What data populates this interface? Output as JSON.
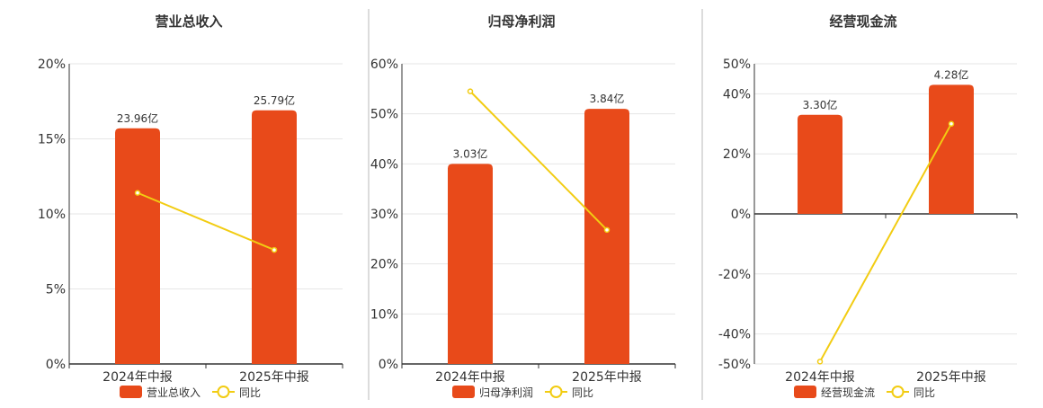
{
  "colors": {
    "bar": "#e84a1a",
    "line": "#f2cc12",
    "grid": "#e6e6e6",
    "axis": "#333333",
    "text": "#333333",
    "divider": "#b8b8b8"
  },
  "chart_data": [
    {
      "type": "bar",
      "title": "营业总收入",
      "categories": [
        "2024年中报",
        "2025年中报"
      ],
      "series": [
        {
          "name": "营业总收入",
          "type": "bar",
          "labels": [
            "23.96亿",
            "25.79亿"
          ],
          "values": [
            15.7,
            16.9
          ]
        },
        {
          "name": "同比",
          "type": "line",
          "values": [
            11.4,
            7.6
          ]
        }
      ],
      "yaxis": {
        "min": 0,
        "max": 20,
        "ticks": [
          "0%",
          "5%",
          "10%",
          "15%",
          "20%"
        ],
        "tick_values": [
          0,
          5,
          10,
          15,
          20
        ]
      },
      "legend": "bottom",
      "grid": true
    },
    {
      "type": "bar",
      "title": "归母净利润",
      "categories": [
        "2024年中报",
        "2025年中报"
      ],
      "series": [
        {
          "name": "归母净利润",
          "type": "bar",
          "labels": [
            "3.03亿",
            "3.84亿"
          ],
          "values": [
            40,
            51
          ]
        },
        {
          "name": "同比",
          "type": "line",
          "values": [
            54.5,
            26.8
          ]
        }
      ],
      "yaxis": {
        "min": 0,
        "max": 60,
        "ticks": [
          "0%",
          "10%",
          "20%",
          "30%",
          "40%",
          "50%",
          "60%"
        ],
        "tick_values": [
          0,
          10,
          20,
          30,
          40,
          50,
          60
        ]
      },
      "legend": "bottom",
      "grid": true
    },
    {
      "type": "bar",
      "title": "经营现金流",
      "categories": [
        "2024年中报",
        "2025年中报"
      ],
      "series": [
        {
          "name": "经营现金流",
          "type": "bar",
          "labels": [
            "3.30亿",
            "4.28亿"
          ],
          "values": [
            33,
            43
          ]
        },
        {
          "name": "同比",
          "type": "line",
          "values": [
            -49.2,
            30.0
          ]
        }
      ],
      "yaxis": {
        "min": -50,
        "max": 50,
        "ticks": [
          "50%",
          "40%",
          "20%",
          "0%",
          "-20%",
          "-40%",
          "-50%"
        ],
        "tick_values": [
          50,
          40,
          20,
          0,
          -20,
          -40,
          -50
        ]
      },
      "legend": "bottom",
      "grid": true
    }
  ]
}
